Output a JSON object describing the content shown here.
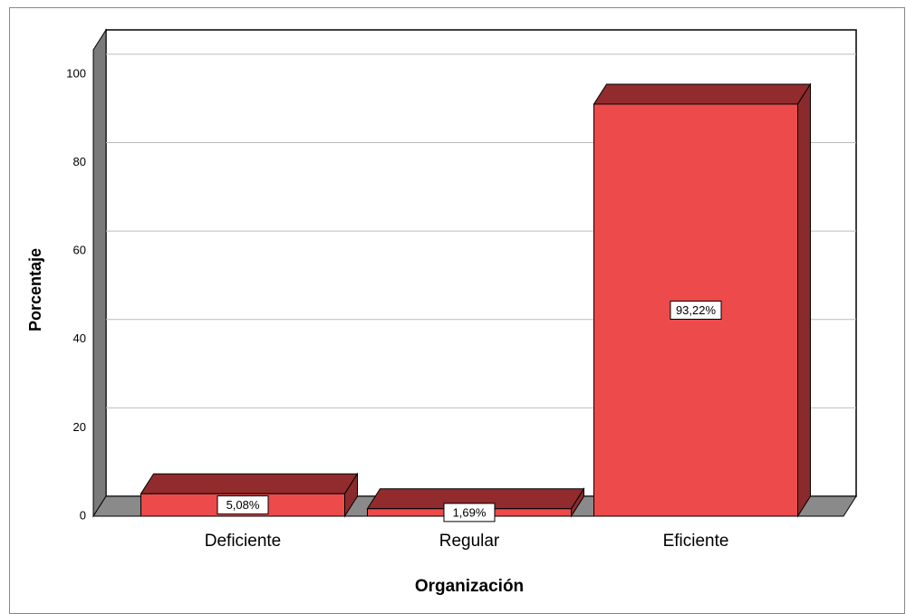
{
  "chart_data": {
    "type": "bar3d",
    "x_label": "Organización",
    "y_label": "Porcentaje",
    "categories": [
      "Deficiente",
      "Regular",
      "Eficiente"
    ],
    "values": [
      5.08,
      1.69,
      93.22
    ],
    "value_labels": [
      "5,08%",
      "1,69%",
      "93,22%"
    ],
    "color": "#ec4a4b",
    "ylim": [
      0,
      105.5
    ],
    "yticks": [
      0,
      20,
      40,
      60,
      80,
      100
    ],
    "grid": true
  }
}
